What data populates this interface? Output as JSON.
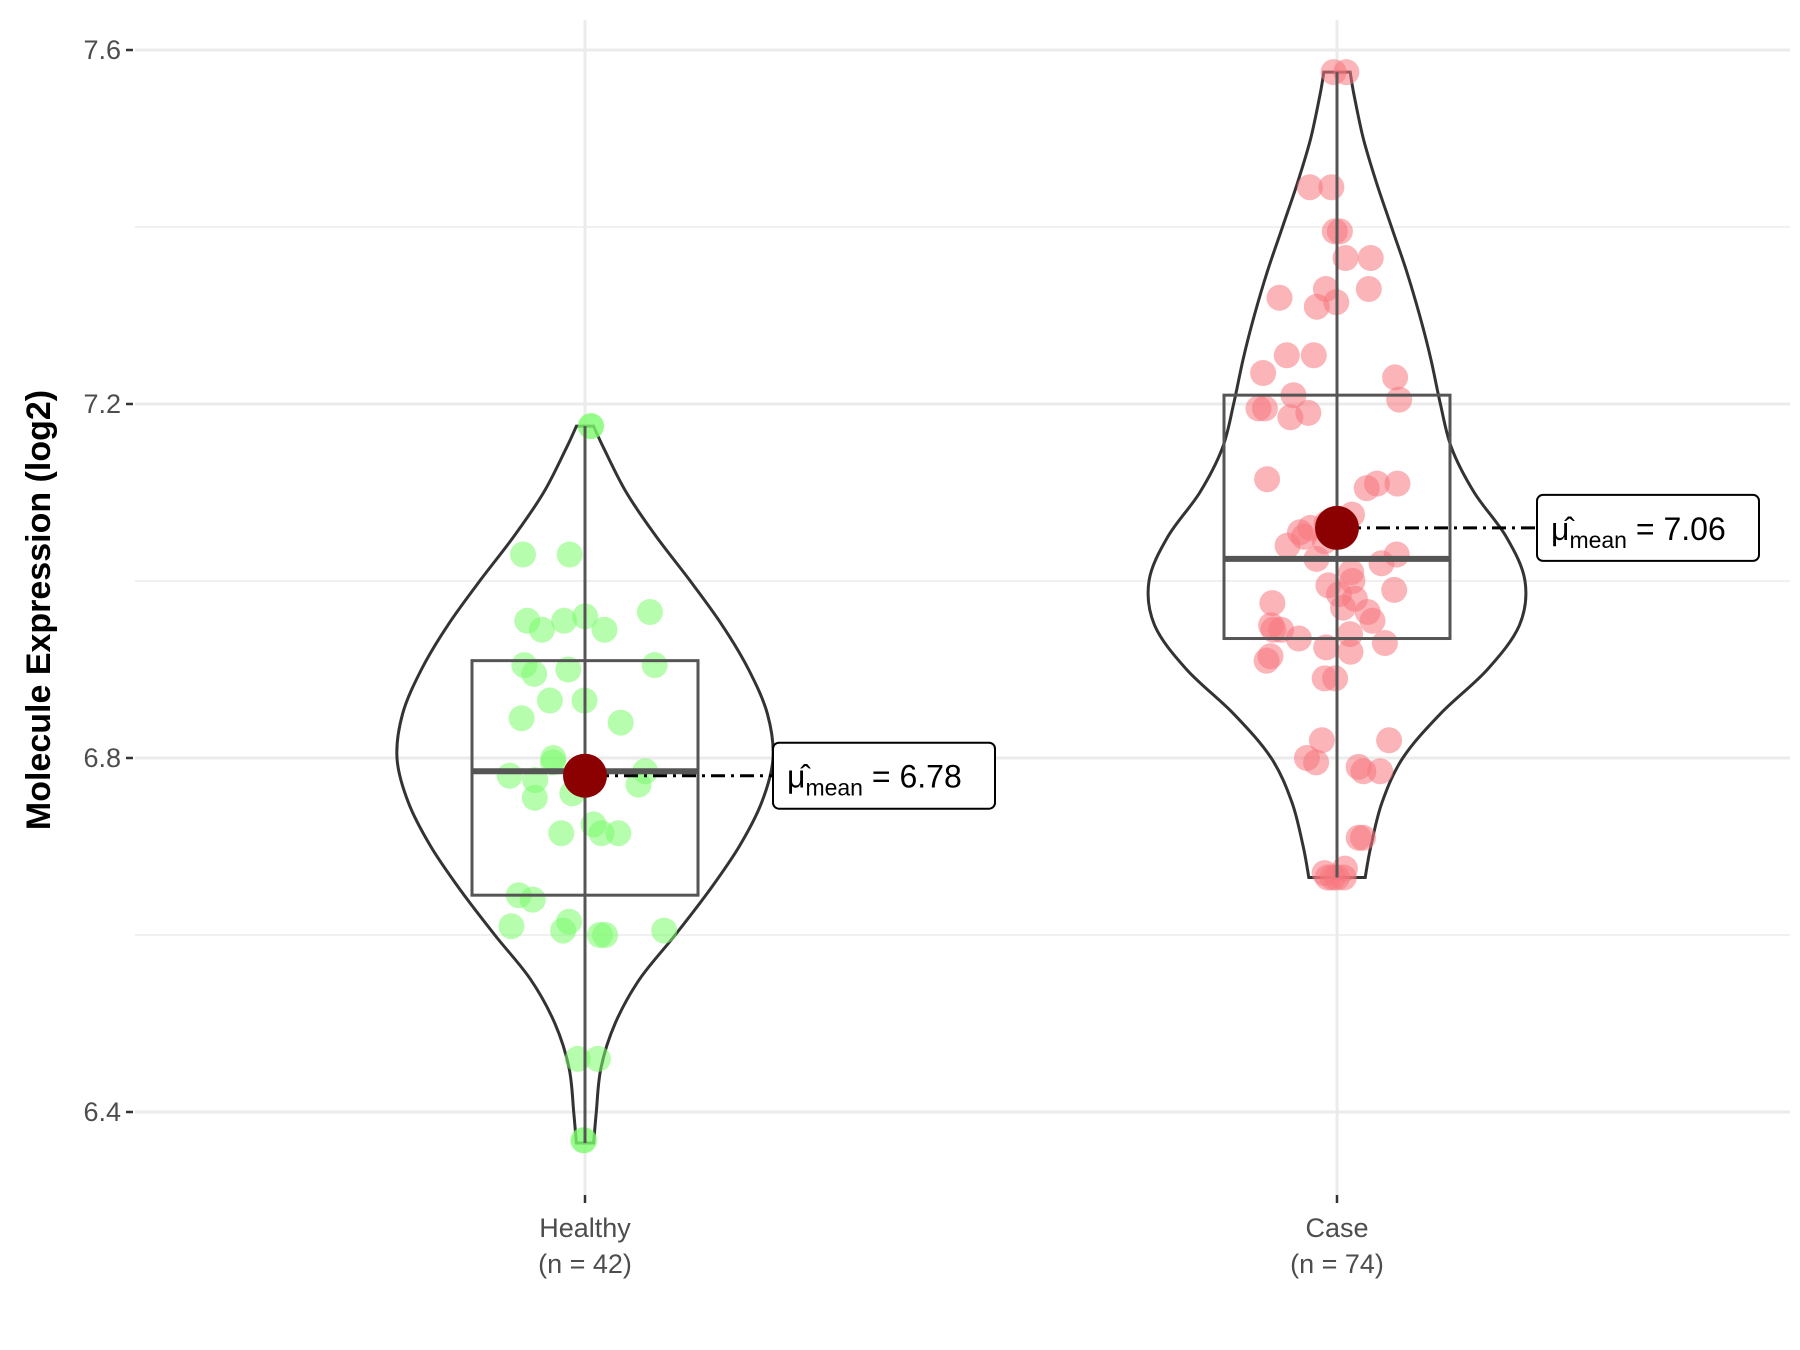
{
  "chart_data": {
    "type": "violin",
    "ylabel": "Molecule Expression (log2)",
    "xlabel": "",
    "ylim": [
      6.28,
      7.63
    ],
    "y_ticks": [
      6.4,
      6.8,
      7.2,
      7.6
    ],
    "y_tick_labels": [
      "6.4",
      "6.8",
      "7.2",
      "7.6"
    ],
    "grid": true,
    "legend": "none",
    "groups": [
      {
        "key": "healthy",
        "label": "Healthy",
        "n_label": "(n = 42)",
        "color": "#7cfc6c",
        "box": {
          "q1": 6.645,
          "median": 6.785,
          "q3": 6.91,
          "whisker_low": 6.365,
          "whisker_high": 7.175
        },
        "violin": {
          "y": [
            6.365,
            6.4,
            6.45,
            6.5,
            6.55,
            6.6,
            6.65,
            6.7,
            6.75,
            6.8,
            6.85,
            6.9,
            6.95,
            7.0,
            7.05,
            7.1,
            7.15,
            7.175
          ],
          "width": [
            0.046,
            0.06,
            0.085,
            0.16,
            0.29,
            0.48,
            0.66,
            0.82,
            0.94,
            1.0,
            0.97,
            0.87,
            0.73,
            0.56,
            0.38,
            0.22,
            0.1,
            0.046
          ]
        },
        "mean": 6.78,
        "mean_label": "6.78",
        "points": [
          7.175,
          7.175,
          7.03,
          7.03,
          6.965,
          6.955,
          6.955,
          6.96,
          6.945,
          6.945,
          6.905,
          6.905,
          6.9,
          6.895,
          6.865,
          6.865,
          6.845,
          6.84,
          6.8,
          6.795,
          6.78,
          6.785,
          6.775,
          6.77,
          6.76,
          6.755,
          6.725,
          6.715,
          6.715,
          6.715,
          6.645,
          6.64,
          6.615,
          6.61,
          6.605,
          6.605,
          6.6,
          6.6,
          6.46,
          6.46,
          6.368,
          6.368
        ]
      },
      {
        "key": "case",
        "label": "Case",
        "n_label": "(n = 74)",
        "color": "#f8767d",
        "box": {
          "q1": 6.935,
          "median": 7.025,
          "q3": 7.21,
          "whisker_low": 6.665,
          "whisker_high": 7.575
        },
        "violin": {
          "y": [
            6.665,
            6.7,
            6.75,
            6.8,
            6.85,
            6.9,
            6.95,
            7.0,
            7.05,
            7.1,
            7.15,
            7.2,
            7.25,
            7.3,
            7.35,
            7.4,
            7.45,
            7.5,
            7.55,
            7.575
          ],
          "width": [
            0.15,
            0.18,
            0.24,
            0.35,
            0.55,
            0.8,
            0.97,
            1.0,
            0.9,
            0.73,
            0.61,
            0.55,
            0.5,
            0.44,
            0.37,
            0.29,
            0.21,
            0.14,
            0.09,
            0.07
          ]
        },
        "mean": 7.06,
        "mean_label": "7.06",
        "points": [
          7.575,
          7.575,
          7.445,
          7.445,
          7.395,
          7.395,
          7.365,
          7.365,
          7.33,
          7.33,
          7.32,
          7.315,
          7.31,
          7.255,
          7.255,
          7.235,
          7.23,
          7.21,
          7.205,
          7.195,
          7.195,
          7.19,
          7.185,
          7.115,
          7.11,
          7.11,
          7.105,
          7.075,
          7.065,
          7.06,
          7.055,
          7.05,
          7.045,
          7.04,
          7.03,
          7.025,
          7.02,
          7.01,
          7.0,
          6.995,
          6.99,
          6.985,
          6.98,
          6.975,
          6.97,
          6.965,
          6.955,
          6.95,
          6.945,
          6.945,
          6.94,
          6.935,
          6.93,
          6.925,
          6.92,
          6.915,
          6.91,
          6.89,
          6.89,
          6.82,
          6.82,
          6.8,
          6.795,
          6.79,
          6.785,
          6.785,
          6.71,
          6.71,
          6.675,
          6.67,
          6.665,
          6.665,
          6.665,
          6.665
        ]
      }
    ],
    "mean_annotation_symbol": "μ̂",
    "mean_annotation_subscript": "mean",
    "mean_point_color": "#8b0000",
    "axis_color": "#333333",
    "grid_color": "#ebebeb"
  }
}
